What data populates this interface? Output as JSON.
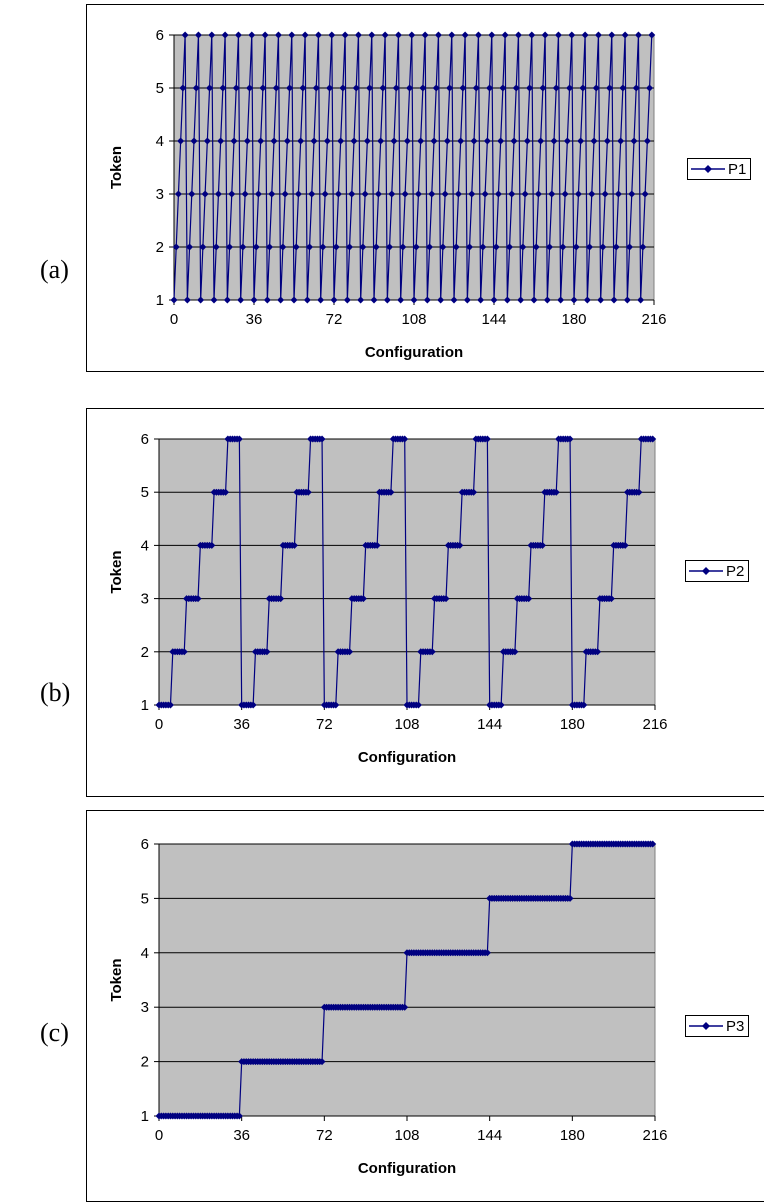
{
  "colors": {
    "series": "#000080",
    "plot_bg": "#c0c0c0",
    "grid": "#000000"
  },
  "chart_data": [
    {
      "panel_label": "(a)",
      "type": "line",
      "xlabel": "Configuration",
      "ylabel": "Token",
      "xlim": [
        0,
        216
      ],
      "ylim": [
        1,
        6
      ],
      "xticks": [
        "0",
        "36",
        "72",
        "108",
        "144",
        "180",
        "216"
      ],
      "yticks": [
        "1",
        "2",
        "3",
        "4",
        "5",
        "6"
      ],
      "grid": "horizontal",
      "legend_position": "right",
      "marker": "diamond",
      "series": [
        {
          "name": "P1",
          "x": "0..215",
          "y_rule": "(x mod 6) + 1"
        }
      ]
    },
    {
      "panel_label": "(b)",
      "type": "line",
      "xlabel": "Configuration",
      "ylabel": "Token",
      "xlim": [
        0,
        216
      ],
      "ylim": [
        1,
        6
      ],
      "xticks": [
        "0",
        "36",
        "72",
        "108",
        "144",
        "180",
        "216"
      ],
      "yticks": [
        "1",
        "2",
        "3",
        "4",
        "5",
        "6"
      ],
      "grid": "horizontal",
      "legend_position": "right",
      "marker": "diamond",
      "series": [
        {
          "name": "P2",
          "x": "0..215",
          "y_rule": "(floor(x / 6) mod 6) + 1"
        }
      ]
    },
    {
      "panel_label": "(c)",
      "type": "line",
      "xlabel": "Configuration",
      "ylabel": "Token",
      "xlim": [
        0,
        216
      ],
      "ylim": [
        1,
        6
      ],
      "xticks": [
        "0",
        "36",
        "72",
        "108",
        "144",
        "180",
        "216"
      ],
      "yticks": [
        "1",
        "2",
        "3",
        "4",
        "5",
        "6"
      ],
      "grid": "horizontal",
      "legend_position": "right",
      "marker": "diamond",
      "series": [
        {
          "name": "P3",
          "x": "0..215",
          "y_rule": "floor(x / 36) + 1"
        }
      ]
    }
  ]
}
